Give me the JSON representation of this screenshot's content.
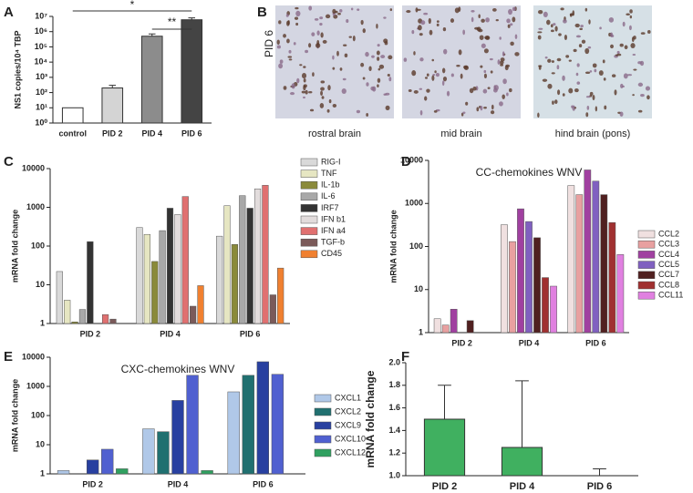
{
  "chart_data": [
    {
      "type": "bar",
      "panel": "A",
      "log_scale": true,
      "ylabel": "NS1 copies/10⁴ TBP",
      "categories": [
        "control",
        "PID 2",
        "PID 4",
        "PID 6"
      ],
      "values": [
        10,
        200,
        500000,
        6000000
      ],
      "errors": [
        0,
        100,
        200000,
        2000000
      ],
      "colors": [
        "#ffffff",
        "#d4d4d4",
        "#8c8c8c",
        "#444444"
      ],
      "ylim": [
        1,
        10000000
      ],
      "yticks": [
        {
          "value": 1,
          "label": "10⁰"
        },
        {
          "value": 10,
          "label": "10¹"
        },
        {
          "value": 100,
          "label": "10²"
        },
        {
          "value": 1000,
          "label": "10³"
        },
        {
          "value": 10000,
          "label": "10⁴"
        },
        {
          "value": 100000,
          "label": "10⁵"
        },
        {
          "value": 1000000,
          "label": "10⁶"
        },
        {
          "value": 10000000,
          "label": "10⁷"
        }
      ],
      "annotations": [
        "*",
        "**"
      ]
    },
    {
      "type": "image",
      "panel": "B",
      "row_label": "PID 6",
      "images": [
        "rostral brain",
        "mid brain",
        "hind brain (pons)"
      ]
    },
    {
      "type": "bar",
      "panel": "C",
      "log_scale": true,
      "ylabel": "mRNA fold change",
      "categories": [
        "PID 2",
        "PID 4",
        "PID 6"
      ],
      "ylim": [
        1,
        10000
      ],
      "yticks": [
        1,
        10,
        100,
        1000,
        10000
      ],
      "series": [
        {
          "name": "RIG-I",
          "color": "#d9d9d9",
          "values": [
            22,
            300,
            180
          ]
        },
        {
          "name": "TNF",
          "color": "#e6e6c2",
          "values": [
            4,
            200,
            1100
          ]
        },
        {
          "name": "IL-1b",
          "color": "#8a8a3a",
          "values": [
            1.1,
            40,
            110
          ]
        },
        {
          "name": "IL-6",
          "color": "#a8a8a8",
          "values": [
            2.3,
            250,
            2000
          ]
        },
        {
          "name": "IRF7",
          "color": "#333333",
          "values": [
            130,
            950,
            950
          ]
        },
        {
          "name": "IFN b1",
          "color": "#e2dcdc",
          "values": [
            null,
            650,
            3000
          ]
        },
        {
          "name": "IFN a4",
          "color": "#e07070",
          "values": [
            1.7,
            1900,
            3700
          ]
        },
        {
          "name": "TGF-b",
          "color": "#7a5a5a",
          "values": [
            1.3,
            2.8,
            5.5
          ]
        },
        {
          "name": "CD45",
          "color": "#f08030",
          "values": [
            null,
            9.5,
            27
          ]
        }
      ]
    },
    {
      "type": "bar",
      "panel": "D",
      "log_scale": true,
      "title": "CC-chemokines  WNV",
      "ylabel": "mRNA fold change",
      "categories": [
        "PID 2",
        "PID 4",
        "PID 6"
      ],
      "ylim": [
        1,
        10000
      ],
      "yticks": [
        1,
        10,
        100,
        1000,
        10000
      ],
      "series": [
        {
          "name": "CCL2",
          "color": "#f0e0e0",
          "values": [
            2.1,
            320,
            2600
          ]
        },
        {
          "name": "CCL3",
          "color": "#e8a0a0",
          "values": [
            1.5,
            130,
            1600
          ]
        },
        {
          "name": "CCL4",
          "color": "#a040a0",
          "values": [
            3.5,
            750,
            6000
          ]
        },
        {
          "name": "CCL5",
          "color": "#8060c0",
          "values": [
            null,
            380,
            3300
          ]
        },
        {
          "name": "CCL7",
          "color": "#502020",
          "values": [
            1.9,
            160,
            1600
          ]
        },
        {
          "name": "CCL8",
          "color": "#a03030",
          "values": [
            null,
            19,
            360
          ]
        },
        {
          "name": "CCL11",
          "color": "#e080e0",
          "values": [
            null,
            12,
            65
          ]
        }
      ]
    },
    {
      "type": "bar",
      "panel": "E",
      "log_scale": true,
      "title": "CXC-chemokines  WNV",
      "ylabel": "mRNA fold change",
      "categories": [
        "PID 2",
        "PID 4",
        "PID 6"
      ],
      "ylim": [
        1,
        10000
      ],
      "yticks": [
        1,
        10,
        100,
        1000,
        10000
      ],
      "series": [
        {
          "name": "CXCL1",
          "color": "#b0c8e8",
          "values": [
            1.3,
            35,
            650
          ]
        },
        {
          "name": "CXCL2",
          "color": "#207070",
          "values": [
            null,
            28,
            2400
          ]
        },
        {
          "name": "CXCL9",
          "color": "#2840a0",
          "values": [
            3,
            330,
            7000
          ]
        },
        {
          "name": "CXCL10",
          "color": "#5060d0",
          "values": [
            7,
            2400,
            2600
          ]
        },
        {
          "name": "CXCL12",
          "color": "#30a060",
          "values": [
            1.5,
            1.3,
            null
          ]
        }
      ]
    },
    {
      "type": "bar",
      "panel": "F",
      "log_scale": false,
      "ylabel": "mRNA fold change",
      "categories": [
        "PID 2",
        "PID 4",
        "PID 6"
      ],
      "values": [
        1.5,
        1.25,
        1.0
      ],
      "errors": [
        0.3,
        0.59,
        0.06
      ],
      "color": "#40b060",
      "ylim": [
        1.0,
        2.0
      ],
      "yticks": [
        {
          "value": 1.0,
          "label": "1.0"
        },
        1.2,
        1.4,
        1.6,
        1.8,
        {
          "value": 2.0,
          "label": "2.0"
        }
      ]
    }
  ]
}
